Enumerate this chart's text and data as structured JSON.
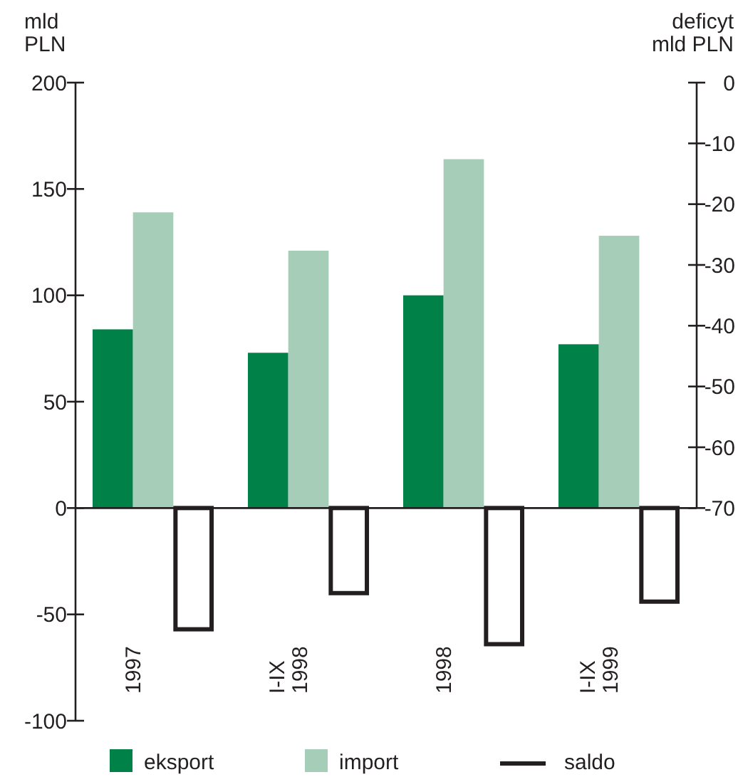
{
  "chart_data": {
    "type": "bar",
    "ylabel": "mld\nPLN",
    "y2label": "deficyt\nmld PLN",
    "categories": [
      "1997",
      "I-IX\n1998",
      "1998",
      "I-IX\n1999"
    ],
    "series": [
      {
        "name": "eksport",
        "color": "#008147",
        "values": [
          84,
          73,
          100,
          77
        ]
      },
      {
        "name": "import",
        "color": "#a6cdb8",
        "values": [
          139,
          121,
          164,
          128
        ]
      },
      {
        "name": "saldo",
        "color": "#231f20",
        "values": [
          -57,
          -40,
          -64,
          -44
        ]
      }
    ],
    "ylim": [
      -100,
      200
    ],
    "yticks": [
      -100,
      -50,
      0,
      50,
      100,
      150,
      200
    ],
    "y2lim": [
      -70,
      0
    ],
    "y2ticks": [
      -70,
      -60,
      -50,
      -40,
      -30,
      -20,
      -10,
      0
    ],
    "legend": "bottom"
  }
}
